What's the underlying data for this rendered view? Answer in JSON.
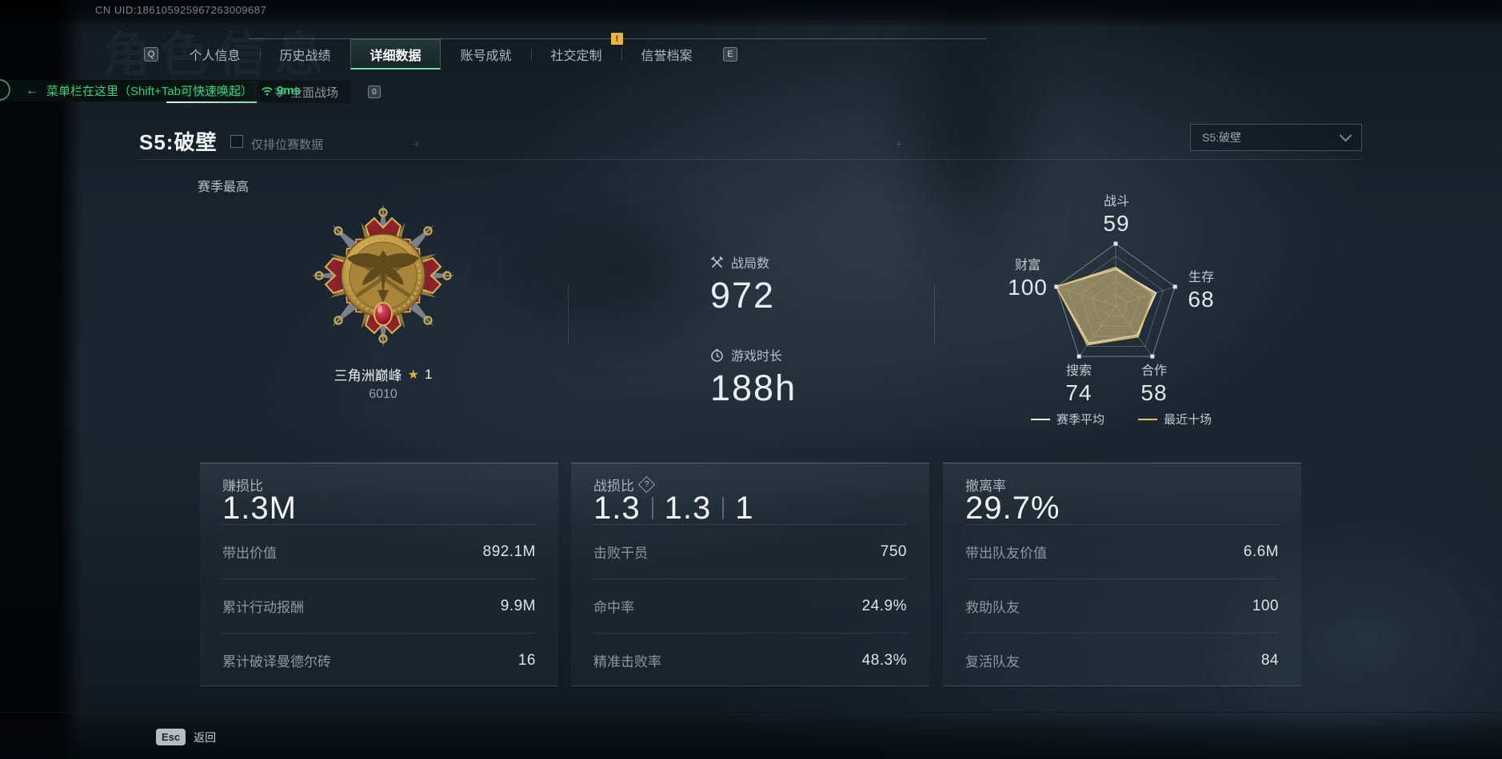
{
  "ui_colors": {
    "accent_green": "#6fdca6",
    "warning_yellow": "#edb43d",
    "gold": "#d9b43e"
  },
  "topbar": {
    "uid": "CN UID:186105925967263009687",
    "bg_title": "角色信息"
  },
  "tabs": {
    "key_prev": "Q",
    "key_next": "E",
    "alert_badge": "!",
    "items": [
      {
        "label": "个人信息"
      },
      {
        "label": "历史战绩"
      },
      {
        "label": "详细数据",
        "active": true
      },
      {
        "label": "账号成就"
      },
      {
        "label": "社交定制"
      },
      {
        "label": "信誉档案"
      }
    ]
  },
  "subtabs": {
    "key": "0",
    "items": [
      {
        "label": "烽火地带",
        "active": true
      },
      {
        "label": "全面战场"
      }
    ]
  },
  "overlay_tip": {
    "arrow": "←",
    "text": "菜单栏在这里（Shift+Tab可快速唤起）",
    "ping": "9ms"
  },
  "season": {
    "heading": "S5:破壁",
    "ranked_only_label": "仅排位赛数据",
    "dropdown_value": "S5:破壁",
    "season_best_label": "赛季最高"
  },
  "medal": {
    "name": "三角洲巅峰",
    "star_icon": "★",
    "stars": "1",
    "score": "6010"
  },
  "overview": {
    "matches": {
      "label": "战局数",
      "value": "972"
    },
    "playtime": {
      "label": "游戏时长",
      "value": "188h"
    }
  },
  "chart_data": {
    "type": "radar",
    "title": "",
    "max": 100,
    "rings": 5,
    "fill": "rgba(196,176,116,0.42)",
    "axes": [
      {
        "label": "战斗",
        "value": 59
      },
      {
        "label": "生存",
        "value": 68
      },
      {
        "label": "合作",
        "value": 58
      },
      {
        "label": "搜索",
        "value": 74
      },
      {
        "label": "财富",
        "value": 100
      }
    ],
    "series": [
      {
        "name": "赛季平均",
        "color": "#eef0e9",
        "values": [
          59,
          68,
          58,
          74,
          100
        ]
      },
      {
        "name": "最近十场",
        "color": "#e2bf63",
        "values": [
          62,
          64,
          61,
          77,
          100
        ]
      }
    ],
    "legend_position": "bottom"
  },
  "cards": [
    {
      "title": "赚损比",
      "value": "1.3M",
      "rows": [
        {
          "label": "带出价值",
          "value": "892.1M"
        },
        {
          "label": "累计行动报酬",
          "value": "9.9M"
        },
        {
          "label": "累计破译曼德尔砖",
          "value": "16"
        }
      ]
    },
    {
      "title": "战损比",
      "help": "?",
      "values": [
        "1.3",
        "1.3",
        "1"
      ],
      "rows": [
        {
          "label": "击败干员",
          "value": "750"
        },
        {
          "label": "命中率",
          "value": "24.9%"
        },
        {
          "label": "精准击败率",
          "value": "48.3%"
        }
      ]
    },
    {
      "title": "撤离率",
      "value": "29.7%",
      "rows": [
        {
          "label": "带出队友价值",
          "value": "6.6M"
        },
        {
          "label": "救助队友",
          "value": "100"
        },
        {
          "label": "复活队友",
          "value": "84"
        }
      ]
    }
  ],
  "footer": {
    "key": "Esc",
    "back_label": "返回"
  }
}
